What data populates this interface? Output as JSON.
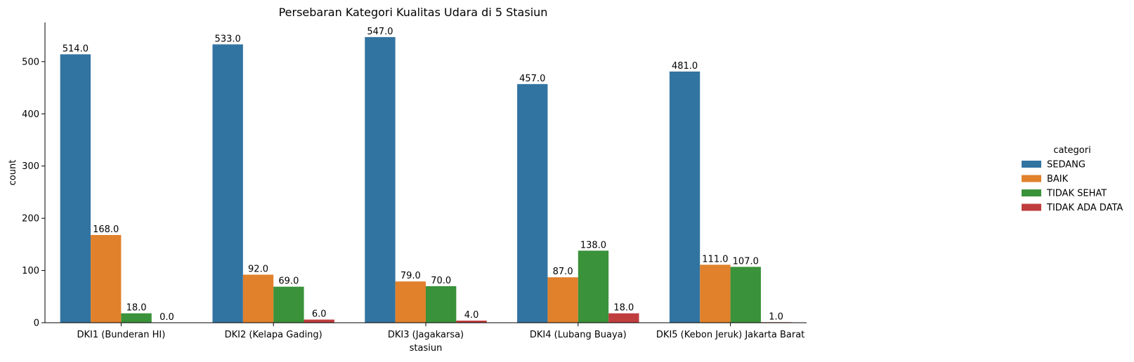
{
  "chart_data": {
    "type": "bar",
    "title": "Persebaran Kategori Kualitas Udara di 5 Stasiun",
    "xlabel": "stasiun",
    "ylabel": "count",
    "ylim": [
      0,
      575
    ],
    "yticks": [
      0,
      100,
      200,
      300,
      400,
      500
    ],
    "grid": false,
    "legend_position": "right",
    "legend_title": "categori",
    "categories": [
      "DKI1 (Bunderan HI)",
      "DKI2 (Kelapa Gading)",
      "DKI3 (Jagakarsa)",
      "DKI4 (Lubang Buaya)",
      "DKI5 (Kebon Jeruk) Jakarta Barat"
    ],
    "series": [
      {
        "name": "SEDANG",
        "color": "#3274a1",
        "values": [
          514,
          533,
          547,
          457,
          481
        ]
      },
      {
        "name": "BAIK",
        "color": "#e1812c",
        "values": [
          168,
          92,
          79,
          87,
          111
        ]
      },
      {
        "name": "TIDAK SEHAT",
        "color": "#3a923a",
        "values": [
          18,
          69,
          70,
          138,
          107
        ]
      },
      {
        "name": "TIDAK ADA DATA",
        "color": "#c03d3e",
        "values": [
          0,
          6,
          4,
          18,
          1
        ]
      }
    ],
    "data_labels": [
      [
        "514.0",
        "533.0",
        "547.0",
        "457.0",
        "481.0"
      ],
      [
        "168.0",
        "92.0",
        "79.0",
        "87.0",
        "111.0"
      ],
      [
        "18.0",
        "69.0",
        "70.0",
        "138.0",
        "107.0"
      ],
      [
        "0.0",
        "6.0",
        "4.0",
        "18.0",
        "1.0"
      ]
    ]
  }
}
